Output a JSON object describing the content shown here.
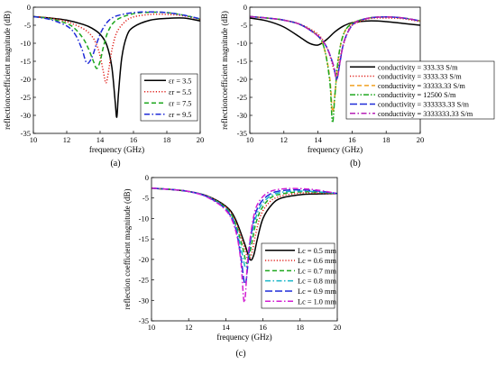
{
  "figure": {
    "panel_labels": [
      "(a)",
      "(b)",
      "(c)"
    ]
  },
  "chart_data": [
    {
      "type": "line",
      "panel": "(a)",
      "xlabel": "frequency (GHz)",
      "ylabel": "reflectioncoefficient magnitude (dB)",
      "xlim": [
        10,
        20
      ],
      "ylim": [
        -35,
        0
      ],
      "xticks": [
        10,
        12,
        14,
        16,
        18,
        20
      ],
      "yticks": [
        0,
        -5,
        -10,
        -15,
        -20,
        -25,
        -30,
        -35
      ],
      "grid": false,
      "legend_position": "right",
      "series": [
        {
          "name": "εr = 3.5",
          "color": "#000000",
          "dash": "solid",
          "x": [
            10,
            11,
            12,
            13,
            13.5,
            14,
            14.4,
            14.7,
            14.9,
            15.0,
            15.1,
            15.3,
            15.6,
            16,
            17,
            18,
            19,
            20
          ],
          "y": [
            -2.6,
            -3.0,
            -3.6,
            -4.8,
            -5.8,
            -7.5,
            -10.5,
            -16.5,
            -26,
            -30.5,
            -24,
            -14,
            -8,
            -5.5,
            -3.6,
            -3.1,
            -3.0,
            -3.8
          ]
        },
        {
          "name": "εr = 5.5",
          "color": "#e0201b",
          "dash": "dot",
          "x": [
            10,
            11,
            12,
            13,
            13.5,
            13.8,
            14.0,
            14.2,
            14.35,
            14.5,
            14.7,
            15.0,
            15.5,
            16,
            17,
            18,
            19,
            20
          ],
          "y": [
            -2.6,
            -3.0,
            -4.0,
            -6.0,
            -8.0,
            -10.5,
            -13.5,
            -18,
            -21,
            -18,
            -12,
            -7,
            -4,
            -2.7,
            -2.0,
            -2.0,
            -2.4,
            -3.4
          ]
        },
        {
          "name": "εr = 7.5",
          "color": "#1ea71e",
          "dash": "dash",
          "x": [
            10,
            11,
            12,
            12.5,
            13.0,
            13.3,
            13.6,
            13.8,
            14.0,
            14.2,
            14.5,
            15.0,
            16,
            17,
            18,
            19,
            20
          ],
          "y": [
            -2.6,
            -3.2,
            -4.5,
            -6.0,
            -8.8,
            -11.5,
            -15,
            -17,
            -15,
            -11,
            -6.5,
            -3.5,
            -1.8,
            -1.4,
            -1.5,
            -2.2,
            -3.3
          ]
        },
        {
          "name": "εr = 9.5",
          "color": "#1f2bd8",
          "dash": "dashdot",
          "x": [
            10,
            11,
            12,
            12.5,
            12.9,
            13.2,
            13.5,
            13.8,
            14.1,
            14.5,
            15.0,
            16,
            17,
            18,
            19,
            20
          ],
          "y": [
            -2.6,
            -3.4,
            -5.2,
            -7.5,
            -11.5,
            -15.5,
            -14,
            -10,
            -6.5,
            -3.8,
            -2.4,
            -1.5,
            -1.3,
            -1.5,
            -2.2,
            -3.2
          ]
        }
      ]
    },
    {
      "type": "line",
      "panel": "(b)",
      "xlabel": "frequency (GHz)",
      "ylabel": "reflectioncoefficient magnitude (dB)",
      "xlim": [
        10,
        20
      ],
      "ylim": [
        -35,
        0
      ],
      "xticks": [
        10,
        12,
        14,
        16,
        18,
        20
      ],
      "yticks": [
        0,
        -5,
        -10,
        -15,
        -20,
        -25,
        -30,
        -35
      ],
      "grid": false,
      "legend_position": "right",
      "series": [
        {
          "name": "conductivity = 333.33 S/m",
          "color": "#000000",
          "dash": "solid",
          "x": [
            10,
            11,
            12,
            13,
            13.5,
            14,
            14.5,
            15,
            15.5,
            16,
            17,
            18,
            19,
            20
          ],
          "y": [
            -3.0,
            -3.8,
            -5.5,
            -8.5,
            -10,
            -10.5,
            -9.0,
            -6.8,
            -5.2,
            -4.3,
            -3.8,
            -4.0,
            -4.5,
            -5.0
          ]
        },
        {
          "name": "conductivity = 3333.33 S/m",
          "color": "#e0201b",
          "dash": "dot",
          "x": [
            10,
            11,
            12,
            13,
            14,
            14.5,
            14.8,
            15.0,
            15.2,
            15.4,
            15.7,
            16,
            17,
            18,
            19,
            20
          ],
          "y": [
            -2.6,
            -3.0,
            -3.6,
            -4.8,
            -7.5,
            -11,
            -15,
            -18,
            -16,
            -12,
            -7.5,
            -5.0,
            -3.2,
            -3.0,
            -3.2,
            -4.0
          ]
        },
        {
          "name": "conductivity = 33333.33 S/m",
          "color": "#f0a020",
          "dash": "dash",
          "x": [
            10,
            11,
            12,
            13,
            14,
            14.4,
            14.7,
            14.85,
            15.0,
            15.2,
            15.5,
            16,
            17,
            18,
            19,
            20
          ],
          "y": [
            -2.6,
            -3.0,
            -3.6,
            -4.9,
            -8.0,
            -12,
            -20,
            -29,
            -24,
            -14,
            -7.5,
            -4.5,
            -3.0,
            -2.7,
            -3.0,
            -3.8
          ]
        },
        {
          "name": "conductivity = 12500 S/m",
          "color": "#1ea71e",
          "dash": "dashdotdot",
          "x": [
            10,
            11,
            12,
            13,
            14,
            14.4,
            14.7,
            14.85,
            15.0,
            15.2,
            15.5,
            16,
            17,
            18,
            19,
            20
          ],
          "y": [
            -2.6,
            -3.0,
            -3.6,
            -4.9,
            -8.0,
            -12,
            -21,
            -32,
            -24,
            -14,
            -7.5,
            -4.5,
            -3.0,
            -2.7,
            -3.0,
            -3.8
          ]
        },
        {
          "name": "conductivity = 333333.33 S/m",
          "color": "#1f2bd8",
          "dash": "longdash",
          "x": [
            10,
            11,
            12,
            13,
            14,
            14.5,
            14.9,
            15.1,
            15.3,
            15.5,
            15.8,
            16.2,
            17,
            18,
            19,
            20
          ],
          "y": [
            -2.6,
            -3.0,
            -3.6,
            -4.9,
            -8.0,
            -11,
            -16,
            -20,
            -15,
            -10,
            -6.5,
            -4.2,
            -3.0,
            -2.7,
            -3.0,
            -3.8
          ]
        },
        {
          "name": "conductivity = 3333333.33 S/m",
          "color": "#b61fb6",
          "dash": "dashdot",
          "x": [
            10,
            11,
            12,
            13,
            14,
            14.5,
            14.9,
            15.1,
            15.3,
            15.5,
            15.8,
            16.2,
            17,
            18,
            19,
            20
          ],
          "y": [
            -2.6,
            -3.0,
            -3.6,
            -4.9,
            -8.0,
            -11,
            -16,
            -20,
            -15,
            -10,
            -6.5,
            -4.2,
            -3.0,
            -2.7,
            -3.0,
            -3.8
          ]
        }
      ]
    },
    {
      "type": "line",
      "panel": "(c)",
      "xlabel": "frequency (GHz)",
      "ylabel": "reflection coefficient magnitude (dB)",
      "xlim": [
        10,
        20
      ],
      "ylim": [
        -35,
        0
      ],
      "xticks": [
        10,
        12,
        14,
        16,
        18,
        20
      ],
      "yticks": [
        0,
        -5,
        -10,
        -15,
        -20,
        -25,
        -30,
        -35
      ],
      "grid": false,
      "legend_position": "right",
      "series": [
        {
          "name": "Lc = 0.5 mm",
          "color": "#000000",
          "dash": "solid",
          "x": [
            10,
            11,
            12,
            13,
            14,
            14.5,
            15.0,
            15.3,
            15.5,
            15.7,
            16.0,
            16.5,
            17,
            18,
            19,
            20
          ],
          "y": [
            -2.6,
            -2.9,
            -3.4,
            -4.5,
            -7.0,
            -10,
            -16,
            -20,
            -19,
            -15,
            -10,
            -6.5,
            -5.0,
            -4.2,
            -4.0,
            -3.9
          ]
        },
        {
          "name": "Lc = 0.6 mm",
          "color": "#e0201b",
          "dash": "dot",
          "x": [
            10,
            11,
            12,
            13,
            14,
            14.5,
            15.0,
            15.2,
            15.4,
            15.6,
            15.9,
            16.4,
            17,
            18,
            19,
            20
          ],
          "y": [
            -2.6,
            -2.9,
            -3.4,
            -4.5,
            -7.2,
            -10.5,
            -17,
            -20,
            -18.5,
            -14,
            -9,
            -5.8,
            -4.5,
            -3.8,
            -3.8,
            -4.0
          ]
        },
        {
          "name": "Lc = 0.7 mm",
          "color": "#1ea71e",
          "dash": "dash",
          "x": [
            10,
            11,
            12,
            13,
            14,
            14.5,
            14.9,
            15.15,
            15.4,
            15.6,
            15.9,
            16.4,
            17,
            18,
            19,
            20
          ],
          "y": [
            -2.6,
            -2.9,
            -3.4,
            -4.6,
            -7.4,
            -11,
            -17,
            -21,
            -16,
            -11.5,
            -7.8,
            -5.0,
            -4.0,
            -3.5,
            -3.6,
            -3.9
          ]
        },
        {
          "name": "Lc = 0.8 mm",
          "color": "#17b5c8",
          "dash": "dashdot",
          "x": [
            10,
            11,
            12,
            13,
            14,
            14.5,
            14.85,
            15.1,
            15.35,
            15.6,
            15.9,
            16.4,
            17,
            18,
            19,
            20
          ],
          "y": [
            -2.6,
            -2.9,
            -3.4,
            -4.6,
            -7.6,
            -11.5,
            -18,
            -22,
            -15,
            -10,
            -6.8,
            -4.5,
            -3.6,
            -3.3,
            -3.5,
            -3.9
          ]
        },
        {
          "name": "Lc = 0.9 mm",
          "color": "#1f2bd8",
          "dash": "longdash",
          "x": [
            10,
            11,
            12,
            13,
            14,
            14.5,
            14.8,
            15.05,
            15.3,
            15.55,
            15.9,
            16.4,
            17,
            18,
            19,
            20
          ],
          "y": [
            -2.6,
            -2.9,
            -3.4,
            -4.7,
            -7.8,
            -12,
            -19,
            -26,
            -16,
            -9.5,
            -6.0,
            -4.0,
            -3.2,
            -3.0,
            -3.3,
            -3.9
          ]
        },
        {
          "name": "Lc = 1.0 mm",
          "color": "#d21ed2",
          "dash": "dashdot",
          "x": [
            10,
            11,
            12,
            13,
            14,
            14.5,
            14.8,
            15.0,
            15.2,
            15.5,
            15.8,
            16.3,
            17,
            18,
            19,
            20
          ],
          "y": [
            -2.6,
            -2.9,
            -3.4,
            -4.8,
            -8.0,
            -12.5,
            -20,
            -30.5,
            -19,
            -9.5,
            -5.8,
            -3.6,
            -2.8,
            -2.7,
            -3.1,
            -3.9
          ]
        }
      ]
    }
  ]
}
